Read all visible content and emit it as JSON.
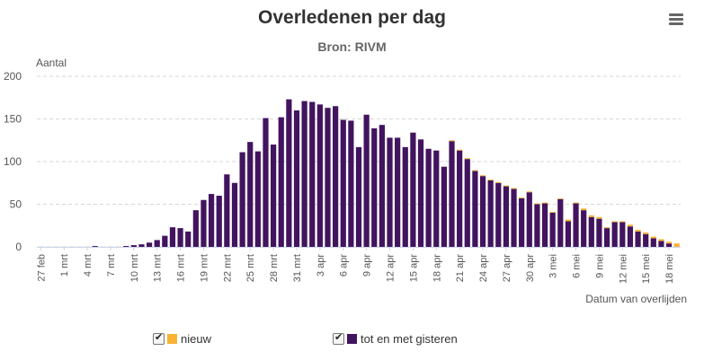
{
  "chart_data": {
    "type": "bar",
    "stacked": true,
    "title": "Overledenen per dag",
    "subtitle": "Bron: RIVM",
    "ylabel": "Aantal",
    "xlabel": "Datum van overlijden",
    "ylim": [
      0,
      200
    ],
    "yticks": [
      0,
      50,
      100,
      150,
      200
    ],
    "grid": true,
    "legend_position": "bottom",
    "tick_labels": [
      "27 feb",
      "1 mrt",
      "4 mrt",
      "7 mrt",
      "10 mrt",
      "13 mrt",
      "16 mrt",
      "19 mrt",
      "22 mrt",
      "25 mrt",
      "28 mrt",
      "31 mrt",
      "3 apr",
      "6 apr",
      "9 apr",
      "12 apr",
      "15 apr",
      "18 apr",
      "21 apr",
      "24 apr",
      "27 apr",
      "30 apr",
      "3 mei",
      "6 mei",
      "9 mei",
      "12 mei",
      "15 mei",
      "18 mei"
    ],
    "series": [
      {
        "name": "tot en met gisteren",
        "color": "#42145f",
        "values": [
          0,
          0,
          0,
          0,
          0,
          0,
          0,
          1,
          0,
          0,
          0,
          1,
          2,
          3,
          5,
          8,
          13,
          23,
          22,
          18,
          43,
          55,
          62,
          60,
          85,
          75,
          111,
          123,
          112,
          151,
          120,
          152,
          173,
          160,
          171,
          170,
          167,
          163,
          165,
          149,
          148,
          117,
          155,
          139,
          143,
          128,
          128,
          117,
          134,
          126,
          115,
          113,
          94,
          124,
          113,
          103,
          89,
          83,
          78,
          75,
          71,
          68,
          57,
          64,
          50,
          51,
          40,
          56,
          30,
          51,
          43,
          35,
          33,
          22,
          29,
          29,
          24,
          18,
          15,
          10,
          7,
          4,
          0
        ],
        "label": "tot en met gisteren"
      },
      {
        "name": "nieuw",
        "color": "#f9b233",
        "values": [
          0,
          0,
          0,
          0,
          0,
          0,
          0,
          0,
          0,
          0,
          0,
          0,
          0,
          0,
          0,
          0,
          0,
          0,
          0,
          0,
          0,
          0,
          0,
          0,
          0,
          0,
          0,
          0,
          0,
          0,
          0,
          0,
          0,
          0,
          0,
          0,
          0,
          0,
          0,
          0,
          0,
          0,
          0,
          0,
          0,
          0,
          0,
          0,
          0,
          0,
          0,
          0,
          0,
          1,
          1,
          1,
          1,
          1,
          1,
          1,
          1,
          1,
          1,
          1,
          1,
          1,
          1,
          1,
          2,
          1,
          2,
          2,
          2,
          1,
          1,
          1,
          2,
          2,
          2,
          2,
          2,
          2,
          4
        ],
        "label": "nieuw"
      }
    ]
  },
  "menu_icon": "hamburger-menu-icon",
  "legend": {
    "nieuw": "nieuw",
    "gisteren": "tot en met gisteren"
  }
}
